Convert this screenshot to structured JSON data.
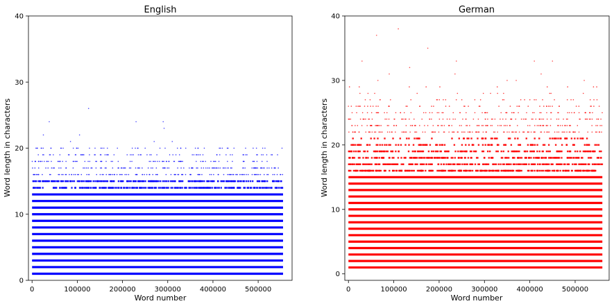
{
  "chart_data": [
    {
      "type": "scatter",
      "title": "English",
      "xlabel": "Word number",
      "ylabel": "Word length in characters",
      "xlim": [
        -8000,
        575000
      ],
      "ylim": [
        0,
        40
      ],
      "xticks": [
        0,
        100000,
        200000,
        300000,
        400000,
        500000
      ],
      "yticks": [
        0,
        10,
        20,
        30,
        40
      ],
      "xtick_labels": [
        "0",
        "100000",
        "200000",
        "300000",
        "400000",
        "500000"
      ],
      "ytick_labels": [
        "0",
        "10",
        "20",
        "30",
        "40"
      ],
      "grid": false,
      "color": "#0000ff",
      "x_range": [
        0,
        555000
      ],
      "dense_lengths": [
        1,
        2,
        3,
        4,
        5,
        6,
        7,
        8,
        9,
        10,
        11,
        12,
        13
      ],
      "medium_lengths": [
        14,
        15
      ],
      "sparse_lengths": [
        16,
        17,
        18,
        19,
        20
      ],
      "outliers": [
        {
          "x": 25000,
          "y": 22
        },
        {
          "x": 38000,
          "y": 24
        },
        {
          "x": 105000,
          "y": 22
        },
        {
          "x": 125000,
          "y": 26
        },
        {
          "x": 230000,
          "y": 24
        },
        {
          "x": 290000,
          "y": 24
        },
        {
          "x": 292000,
          "y": 23
        },
        {
          "x": 270000,
          "y": 21
        },
        {
          "x": 310000,
          "y": 21
        },
        {
          "x": 20000,
          "y": 20
        },
        {
          "x": 85000,
          "y": 21
        }
      ]
    },
    {
      "type": "scatter",
      "title": "German",
      "xlabel": "Word number",
      "ylabel": "Word length in characters",
      "xlim": [
        -8000,
        575000
      ],
      "ylim": [
        -1,
        40
      ],
      "xticks": [
        0,
        100000,
        200000,
        300000,
        400000,
        500000
      ],
      "yticks": [
        0,
        10,
        20,
        30,
        40
      ],
      "xtick_labels": [
        "0",
        "100000",
        "200000",
        "300000",
        "400000",
        "500000"
      ],
      "ytick_labels": [
        "0",
        "10",
        "20",
        "30",
        "40"
      ],
      "grid": false,
      "color": "#ff0000",
      "x_range": [
        0,
        560000
      ],
      "dense_lengths": [
        1,
        2,
        3,
        4,
        5,
        6,
        7,
        8,
        9,
        10,
        11,
        12,
        13,
        14,
        15
      ],
      "medium_lengths": [
        16,
        17,
        18,
        19,
        20,
        21
      ],
      "sparse_lengths": [
        22,
        23,
        24,
        25,
        26,
        27,
        28,
        29
      ],
      "outliers": [
        {
          "x": 110000,
          "y": 38
        },
        {
          "x": 62000,
          "y": 37
        },
        {
          "x": 175000,
          "y": 35
        },
        {
          "x": 238000,
          "y": 33
        },
        {
          "x": 30000,
          "y": 33
        },
        {
          "x": 410000,
          "y": 33
        },
        {
          "x": 450000,
          "y": 33
        },
        {
          "x": 135000,
          "y": 32
        },
        {
          "x": 235000,
          "y": 31
        },
        {
          "x": 425000,
          "y": 31
        },
        {
          "x": 65000,
          "y": 30
        },
        {
          "x": 90000,
          "y": 31
        },
        {
          "x": 350000,
          "y": 30
        },
        {
          "x": 370000,
          "y": 30
        },
        {
          "x": 0,
          "y": 26
        },
        {
          "x": 520000,
          "y": 30
        }
      ]
    }
  ]
}
